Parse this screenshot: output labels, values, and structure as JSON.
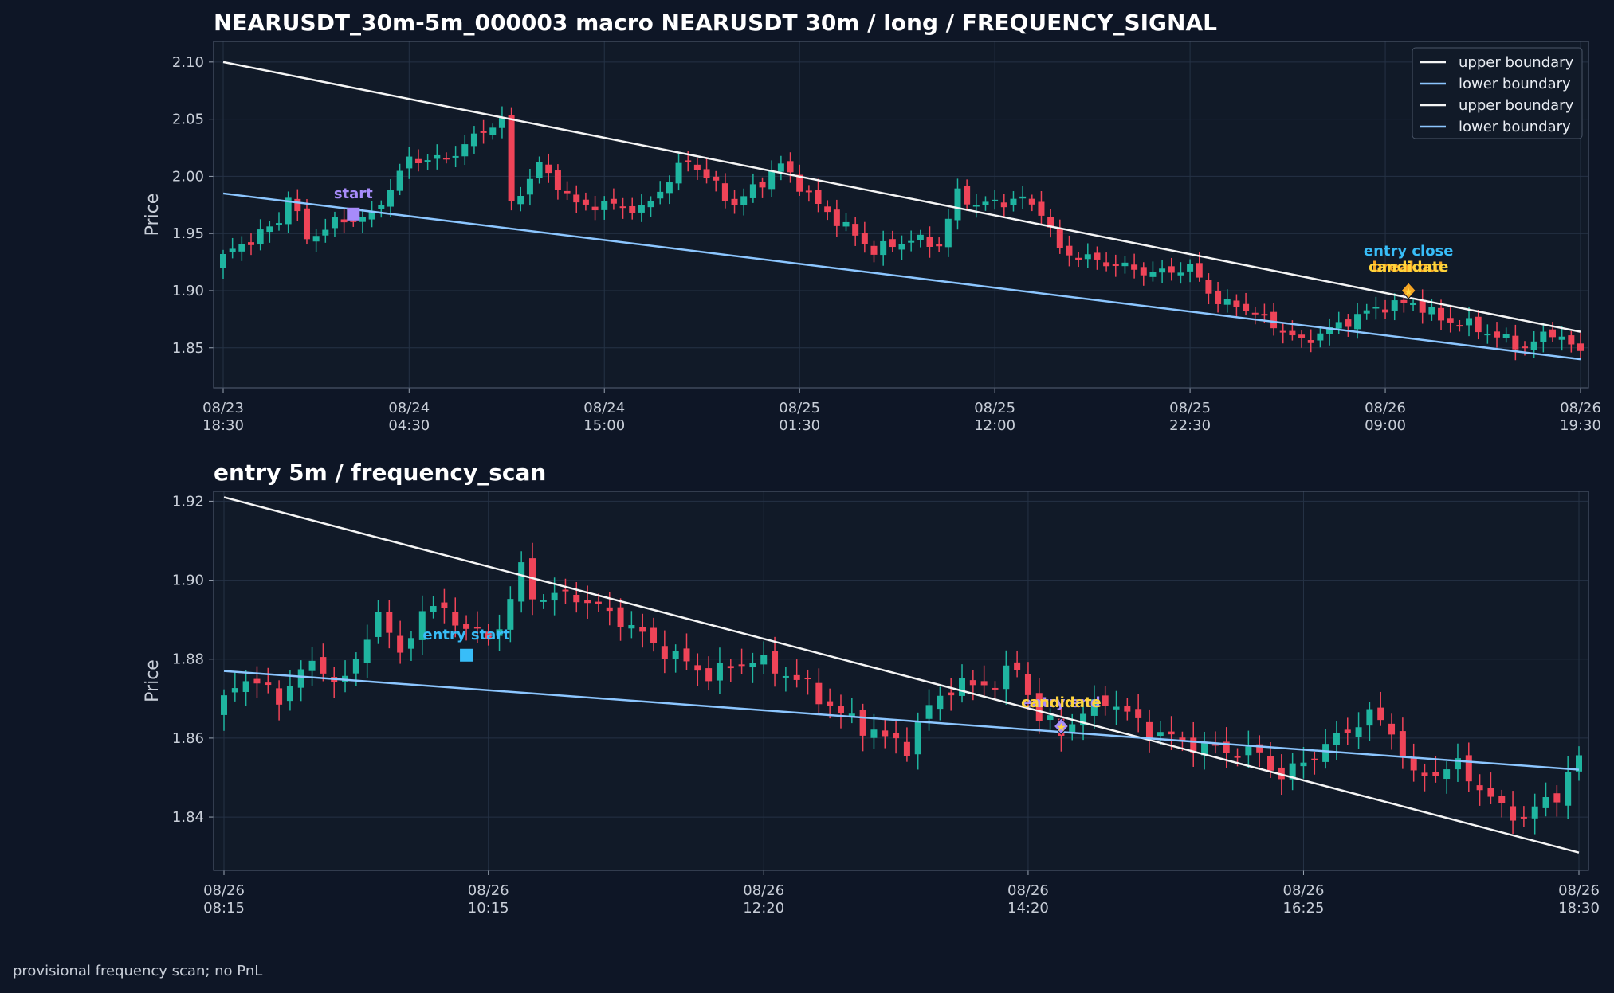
{
  "footer_note": "provisional frequency scan; no PnL",
  "colors": {
    "background": "#0e1626",
    "panel": "#111a28",
    "grid": "#253245",
    "up_candle": "#1fb5a0",
    "down_candle": "#ef4458",
    "upper_boundary": "#f5f5f5",
    "lower_boundary": "#8cc6ff",
    "start": "#a78bfa",
    "entry_start": "#38bdf8",
    "breakout": "#f5a524",
    "candidate": "#ffd43b",
    "entry_end": "#a78bfa"
  },
  "chart_data": [
    {
      "type": "candlestick",
      "title": "NEARUSDT_30m-5m_000003 macro NEARUSDT 30m / long / FREQUENCY_SIGNAL",
      "ylabel": "Price",
      "xlabel": "",
      "ylim": [
        1.815,
        2.118
      ],
      "yticks": [
        "2.10",
        "2.05",
        "2.00",
        "1.95",
        "1.90",
        "1.85"
      ],
      "xticks": [
        {
          "l1": "08/23",
          "l2": "18:30",
          "i": 0
        },
        {
          "l1": "08/24",
          "l2": "04:30",
          "i": 20
        },
        {
          "l1": "08/24",
          "l2": "15:00",
          "i": 41
        },
        {
          "l1": "08/25",
          "l2": "01:30",
          "i": 62
        },
        {
          "l1": "08/25",
          "l2": "12:00",
          "i": 83
        },
        {
          "l1": "08/25",
          "l2": "22:30",
          "i": 104
        },
        {
          "l1": "08/26",
          "l2": "09:00",
          "i": 125
        },
        {
          "l1": "08/26",
          "l2": "19:30",
          "i": 146
        }
      ],
      "grid": true,
      "legend_position": "top-right",
      "legend": [
        "upper boundary",
        "lower boundary",
        "upper boundary",
        "lower boundary"
      ],
      "ohlc_anchor_closes": [
        [
          0,
          1.93
        ],
        [
          6,
          1.96
        ],
        [
          7,
          1.985
        ],
        [
          9,
          1.945
        ],
        [
          12,
          1.96
        ],
        [
          16,
          1.965
        ],
        [
          20,
          2.015
        ],
        [
          24,
          2.015
        ],
        [
          28,
          2.04
        ],
        [
          30,
          2.05
        ],
        [
          31,
          1.975
        ],
        [
          34,
          2.01
        ],
        [
          38,
          1.975
        ],
        [
          42,
          1.975
        ],
        [
          45,
          1.97
        ],
        [
          50,
          2.015
        ],
        [
          55,
          1.975
        ],
        [
          60,
          2.01
        ],
        [
          64,
          1.975
        ],
        [
          67,
          1.955
        ],
        [
          70,
          1.935
        ],
        [
          74,
          1.945
        ],
        [
          77,
          1.94
        ],
        [
          79,
          1.985
        ],
        [
          81,
          1.975
        ],
        [
          86,
          1.98
        ],
        [
          88,
          1.97
        ],
        [
          90,
          1.935
        ],
        [
          92,
          1.93
        ],
        [
          100,
          1.915
        ],
        [
          104,
          1.92
        ],
        [
          107,
          1.89
        ],
        [
          110,
          1.885
        ],
        [
          114,
          1.865
        ],
        [
          116,
          1.855
        ],
        [
          120,
          1.87
        ],
        [
          124,
          1.885
        ],
        [
          128,
          1.89
        ],
        [
          131,
          1.875
        ],
        [
          134,
          1.87
        ],
        [
          140,
          1.85
        ],
        [
          143,
          1.865
        ],
        [
          146,
          1.845
        ]
      ],
      "lines": [
        {
          "name": "upper boundary",
          "x": [
            0,
            146
          ],
          "y": [
            2.1,
            1.864
          ]
        },
        {
          "name": "lower boundary",
          "x": [
            0,
            146
          ],
          "y": [
            1.985,
            1.84
          ]
        }
      ],
      "markers": [
        {
          "label": "start",
          "x": 14,
          "y": 1.967,
          "shape": "square",
          "color_key": "start"
        },
        {
          "label": "breakout",
          "x": 127.5,
          "y": 1.9,
          "shape": "diamond",
          "color_key": "breakout"
        },
        {
          "label": "candidate",
          "x": 127.5,
          "y": 1.9,
          "shape": "star",
          "color_key": "candidate"
        },
        {
          "label": "entry close",
          "x": 127.5,
          "y": 1.9,
          "shape": "none",
          "color_key": "entry_start"
        }
      ]
    },
    {
      "type": "candlestick",
      "title": "entry 5m / frequency_scan",
      "ylabel": "Price",
      "xlabel": "",
      "ylim": [
        1.8265,
        1.9225
      ],
      "yticks": [
        "1.92",
        "1.90",
        "1.88",
        "1.86",
        "1.84"
      ],
      "xticks": [
        {
          "l1": "08/26",
          "l2": "08:15",
          "i": 0
        },
        {
          "l1": "08/26",
          "l2": "10:15",
          "i": 24
        },
        {
          "l1": "08/26",
          "l2": "12:20",
          "i": 49
        },
        {
          "l1": "08/26",
          "l2": "14:20",
          "i": 73
        },
        {
          "l1": "08/26",
          "l2": "16:25",
          "i": 98
        },
        {
          "l1": "08/26",
          "l2": "18:30",
          "i": 123
        }
      ],
      "grid": true,
      "ohlc_anchor_closes": [
        [
          0,
          1.87
        ],
        [
          3,
          1.876
        ],
        [
          5,
          1.868
        ],
        [
          7,
          1.879
        ],
        [
          10,
          1.875
        ],
        [
          12,
          1.878
        ],
        [
          14,
          1.893
        ],
        [
          16,
          1.88
        ],
        [
          18,
          1.893
        ],
        [
          20,
          1.892
        ],
        [
          22,
          1.888
        ],
        [
          24,
          1.885
        ],
        [
          25,
          1.889
        ],
        [
          26,
          1.895
        ],
        [
          27,
          1.903
        ],
        [
          28,
          1.896
        ],
        [
          32,
          1.896
        ],
        [
          36,
          1.89
        ],
        [
          40,
          1.882
        ],
        [
          44,
          1.876
        ],
        [
          48,
          1.88
        ],
        [
          52,
          1.875
        ],
        [
          56,
          1.866
        ],
        [
          60,
          1.86
        ],
        [
          62,
          1.858
        ],
        [
          64,
          1.868
        ],
        [
          66,
          1.873
        ],
        [
          70,
          1.874
        ],
        [
          72,
          1.878
        ],
        [
          74,
          1.865
        ],
        [
          76,
          1.862
        ],
        [
          78,
          1.866
        ],
        [
          80,
          1.87
        ],
        [
          82,
          1.866
        ],
        [
          84,
          1.862
        ],
        [
          88,
          1.858
        ],
        [
          94,
          1.856
        ],
        [
          96,
          1.85
        ],
        [
          100,
          1.858
        ],
        [
          104,
          1.866
        ],
        [
          106,
          1.862
        ],
        [
          108,
          1.85
        ],
        [
          112,
          1.853
        ],
        [
          116,
          1.842
        ],
        [
          118,
          1.84
        ],
        [
          121,
          1.846
        ],
        [
          123,
          1.855
        ]
      ],
      "lines": [
        {
          "name": "upper boundary",
          "x": [
            0,
            123
          ],
          "y": [
            1.921,
            1.831
          ]
        },
        {
          "name": "lower boundary",
          "x": [
            0,
            123
          ],
          "y": [
            1.877,
            1.852
          ]
        }
      ],
      "markers": [
        {
          "label": "entry start",
          "x": 22,
          "y": 1.881,
          "shape": "square",
          "color_key": "entry_start"
        },
        {
          "label": "entry end",
          "x": 76,
          "y": 1.863,
          "shape": "diamond",
          "color_key": "entry_end"
        },
        {
          "label": "candidate",
          "x": 76,
          "y": 1.863,
          "shape": "star",
          "color_key": "candidate"
        }
      ]
    }
  ]
}
